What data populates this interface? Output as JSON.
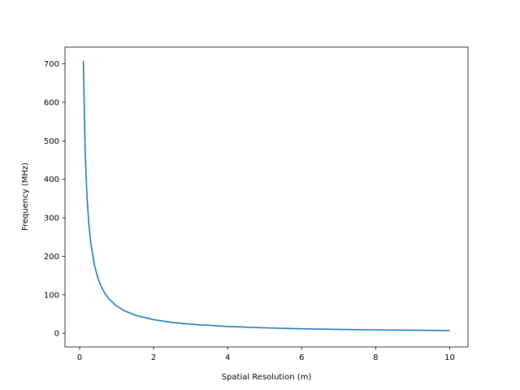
{
  "chart_data": {
    "type": "line",
    "title": "",
    "xlabel": "Spatial Resolution (m)",
    "ylabel": "Frequency (MHz)",
    "xlim": [
      -0.395,
      10.495
    ],
    "ylim": [
      -35.4,
      743.4
    ],
    "xticks": [
      0,
      2,
      4,
      6,
      8,
      10
    ],
    "yticks": [
      0,
      100,
      200,
      300,
      400,
      500,
      600,
      700
    ],
    "grid": false,
    "legend": "none",
    "line_color": "#1f77b4",
    "series": [
      {
        "x": [
          0.1,
          0.15,
          0.2,
          0.25,
          0.3,
          0.4,
          0.5,
          0.6,
          0.7,
          0.8,
          1.0,
          1.2,
          1.5,
          2.0,
          2.5,
          3.0,
          4.0,
          5.0,
          6.0,
          7.0,
          8.0,
          9.0,
          10.0
        ],
        "values": [
          708.0,
          472.0,
          354.0,
          283.2,
          236.0,
          177.0,
          141.6,
          118.0,
          101.1,
          88.5,
          70.8,
          59.0,
          47.2,
          35.4,
          28.3,
          23.6,
          17.7,
          14.2,
          11.8,
          10.1,
          8.9,
          7.9,
          7.1
        ]
      }
    ]
  }
}
